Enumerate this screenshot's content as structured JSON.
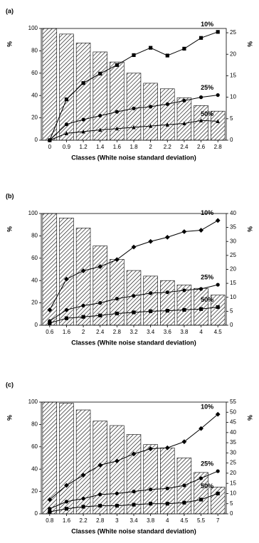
{
  "chart_data": [
    {
      "type": "bar",
      "panel_label": "(a)",
      "x_label": "Classes (White noise standard deviation)",
      "y_label": "%",
      "y2_label": "%",
      "categories": [
        "0",
        "0.9",
        "1.2",
        "1.4",
        "1.6",
        "1.8",
        "2",
        "2.2",
        "2.4",
        "2.6",
        "2.8"
      ],
      "ylim": [
        0,
        100
      ],
      "yticks": [
        0,
        20,
        40,
        60,
        80,
        100
      ],
      "y2lim": [
        0,
        26
      ],
      "y2ticks": [
        0,
        5,
        10,
        15,
        20,
        25
      ],
      "series": [
        {
          "type": "bar",
          "color": "#000000",
          "values": [
            100,
            95,
            87,
            79,
            70,
            60,
            51,
            46,
            38,
            31,
            26
          ]
        },
        {
          "type": "line",
          "name": "10%",
          "axis": "y2",
          "marker": "square",
          "color": "#000000",
          "values": [
            0,
            9.5,
            13.3,
            15.5,
            17.5,
            19.8,
            21.5,
            19.7,
            21.3,
            23.8,
            25.2
          ]
        },
        {
          "type": "line",
          "name": "25%",
          "axis": "y2",
          "marker": "circle",
          "color": "#000000",
          "values": [
            0,
            3.7,
            4.8,
            5.7,
            6.6,
            7.4,
            7.8,
            8.4,
            9.2,
            10,
            10.5
          ]
        },
        {
          "type": "line",
          "name": "50%",
          "axis": "y2",
          "marker": "triangle",
          "color": "#000000",
          "values": [
            0,
            1.6,
            2.0,
            2.4,
            2.7,
            3.0,
            3.3,
            3.6,
            3.9,
            4.6,
            4.4
          ]
        }
      ]
    },
    {
      "type": "bar",
      "panel_label": "(b)",
      "x_label": "Classes (White noise standard deviation)",
      "y_label": "%",
      "y2_label": "%",
      "categories": [
        "0.6",
        "1.6",
        "2",
        "2.4",
        "2.8",
        "3.2",
        "3.4",
        "3.6",
        "3.8",
        "4",
        "4.5"
      ],
      "ylim": [
        0,
        100
      ],
      "yticks": [
        0,
        20,
        40,
        60,
        80,
        100
      ],
      "y2lim": [
        0,
        40
      ],
      "y2ticks": [
        0,
        5,
        10,
        15,
        20,
        25,
        30,
        35,
        40
      ],
      "series": [
        {
          "type": "bar",
          "color": "#000000",
          "values": [
            100,
            96,
            87,
            71,
            59,
            49,
            44,
            40,
            36,
            33,
            27
          ]
        },
        {
          "type": "line",
          "name": "10%",
          "axis": "y2",
          "marker": "diamond",
          "color": "#000000",
          "values": [
            5.5,
            16.5,
            19.5,
            21,
            23.5,
            28,
            30,
            31.5,
            33.5,
            34,
            37.5
          ]
        },
        {
          "type": "line",
          "name": "25%",
          "axis": "y2",
          "marker": "circle",
          "color": "#000000",
          "values": [
            1.5,
            5.5,
            7,
            8,
            9.5,
            10.5,
            11.5,
            11.8,
            12.5,
            13,
            14.5
          ]
        },
        {
          "type": "line",
          "name": "50%",
          "axis": "y2",
          "marker": "square",
          "color": "#000000",
          "values": [
            0.8,
            2.5,
            3,
            3.5,
            4.2,
            4.6,
            5,
            5.2,
            5.5,
            5.8,
            6.5
          ]
        }
      ]
    },
    {
      "type": "bar",
      "panel_label": "(c)",
      "x_label": "Classes (White noise standard deviation)",
      "y_label": "%",
      "y2_label": "%",
      "categories": [
        "0.8",
        "1.6",
        "2.2",
        "2.8",
        "3",
        "3.4",
        "3.8",
        "4",
        "4.5",
        "5.5",
        "7"
      ],
      "ylim": [
        0,
        100
      ],
      "yticks": [
        0,
        20,
        40,
        60,
        80,
        100
      ],
      "y2lim": [
        0,
        55
      ],
      "y2ticks": [
        0,
        5,
        10,
        15,
        20,
        25,
        30,
        35,
        40,
        45,
        50,
        55
      ],
      "series": [
        {
          "type": "bar",
          "color": "#000000",
          "values": [
            100,
            99,
            93,
            83,
            79,
            71,
            62,
            59,
            50,
            37,
            24
          ]
        },
        {
          "type": "line",
          "name": "10%",
          "axis": "y2",
          "marker": "diamond",
          "color": "#000000",
          "values": [
            7,
            14,
            19,
            24,
            26,
            29.5,
            32,
            32.5,
            35.5,
            42,
            49
          ]
        },
        {
          "type": "line",
          "name": "25%",
          "axis": "y2",
          "marker": "circle",
          "color": "#000000",
          "values": [
            2.5,
            6,
            7.5,
            9.5,
            10,
            11,
            12,
            12.5,
            14,
            17.5,
            21
          ]
        },
        {
          "type": "line",
          "name": "50%",
          "axis": "y2",
          "marker": "square",
          "color": "#000000",
          "values": [
            1,
            2.5,
            3.5,
            4,
            4,
            4.5,
            5,
            5,
            5.5,
            7,
            10
          ]
        }
      ]
    }
  ]
}
